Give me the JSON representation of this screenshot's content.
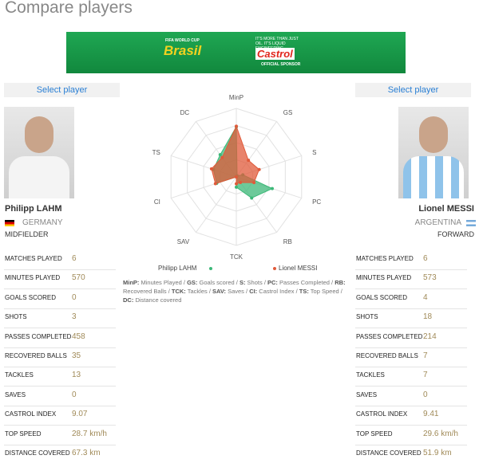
{
  "header": {
    "title": "Compare players"
  },
  "banner": {
    "cup": "FIFA WORLD CUP",
    "brasil": "Brasil",
    "slogan": "IT'S MORE THAN JUST OIL. IT'S LIQUID ENGINEERING",
    "brand": "Castrol",
    "sponsor": "OFFICIAL SPONSOR"
  },
  "players": [
    {
      "select": "Select player",
      "name": "Philipp LAHM",
      "country": "GERMANY",
      "position": "MIDFIELDER",
      "stats": [
        {
          "label": "MATCHES PLAYED",
          "value": "6"
        },
        {
          "label": "MINUTES PLAYED",
          "value": "570"
        },
        {
          "label": "GOALS SCORED",
          "value": "0"
        },
        {
          "label": "SHOTS",
          "value": "3"
        },
        {
          "label": "PASSES COMPLETED",
          "value": "458"
        },
        {
          "label": "RECOVERED BALLS",
          "value": "35"
        },
        {
          "label": "TACKLES",
          "value": "13"
        },
        {
          "label": "SAVES",
          "value": "0"
        },
        {
          "label": "CASTROL INDEX",
          "value": "9.07"
        },
        {
          "label": "TOP SPEED",
          "value": "28.7 km/h"
        },
        {
          "label": "DISTANCE COVERED",
          "value": "67.3 km"
        }
      ]
    },
    {
      "select": "Select player",
      "name": "Lionel MESSI",
      "country": "ARGENTINA",
      "position": "FORWARD",
      "stats": [
        {
          "label": "MATCHES PLAYED",
          "value": "6"
        },
        {
          "label": "MINUTES PLAYED",
          "value": "573"
        },
        {
          "label": "GOALS SCORED",
          "value": "4"
        },
        {
          "label": "SHOTS",
          "value": "18"
        },
        {
          "label": "PASSES COMPLETED",
          "value": "214"
        },
        {
          "label": "RECOVERED BALLS",
          "value": "7"
        },
        {
          "label": "TACKLES",
          "value": "7"
        },
        {
          "label": "SAVES",
          "value": "0"
        },
        {
          "label": "CASTROL INDEX",
          "value": "9.41"
        },
        {
          "label": "TOP SPEED",
          "value": "29.6 km/h"
        },
        {
          "label": "DISTANCE COVERED",
          "value": "51.9 km"
        }
      ]
    }
  ],
  "chart_data": {
    "type": "radar",
    "axes": [
      "MinP",
      "GS",
      "S",
      "PC",
      "RB",
      "TCK",
      "SAV",
      "CI",
      "TS",
      "DC"
    ],
    "rlim": [
      0,
      1
    ],
    "rticks": [
      0.25,
      0.5,
      0.75,
      1
    ],
    "series": [
      {
        "name": "Philipp LAHM",
        "color": "#3cb878",
        "values": [
          0.73,
          0.02,
          0.1,
          0.55,
          0.38,
          0.15,
          0,
          0.3,
          0.35,
          0.4
        ]
      },
      {
        "name": "Lionel MESSI",
        "color": "#e05a3a",
        "values": [
          0.74,
          0.3,
          0.35,
          0.27,
          0.1,
          0.1,
          0,
          0.32,
          0.38,
          0.35
        ]
      }
    ]
  },
  "legend_note": [
    {
      "abbr": "MinP:",
      "text": "Minutes Played"
    },
    {
      "abbr": "GS:",
      "text": "Goals scored"
    },
    {
      "abbr": "S:",
      "text": "Shots"
    },
    {
      "abbr": "PC:",
      "text": "Passes Completed"
    },
    {
      "abbr": "RB:",
      "text": "Recovered Balls"
    },
    {
      "abbr": "TCK:",
      "text": "Tackles"
    },
    {
      "abbr": "SAV:",
      "text": "Saves"
    },
    {
      "abbr": "CI:",
      "text": "Castrol Index"
    },
    {
      "abbr": "TS:",
      "text": "Top Speed"
    },
    {
      "abbr": "DC:",
      "text": "Distance covered"
    }
  ]
}
